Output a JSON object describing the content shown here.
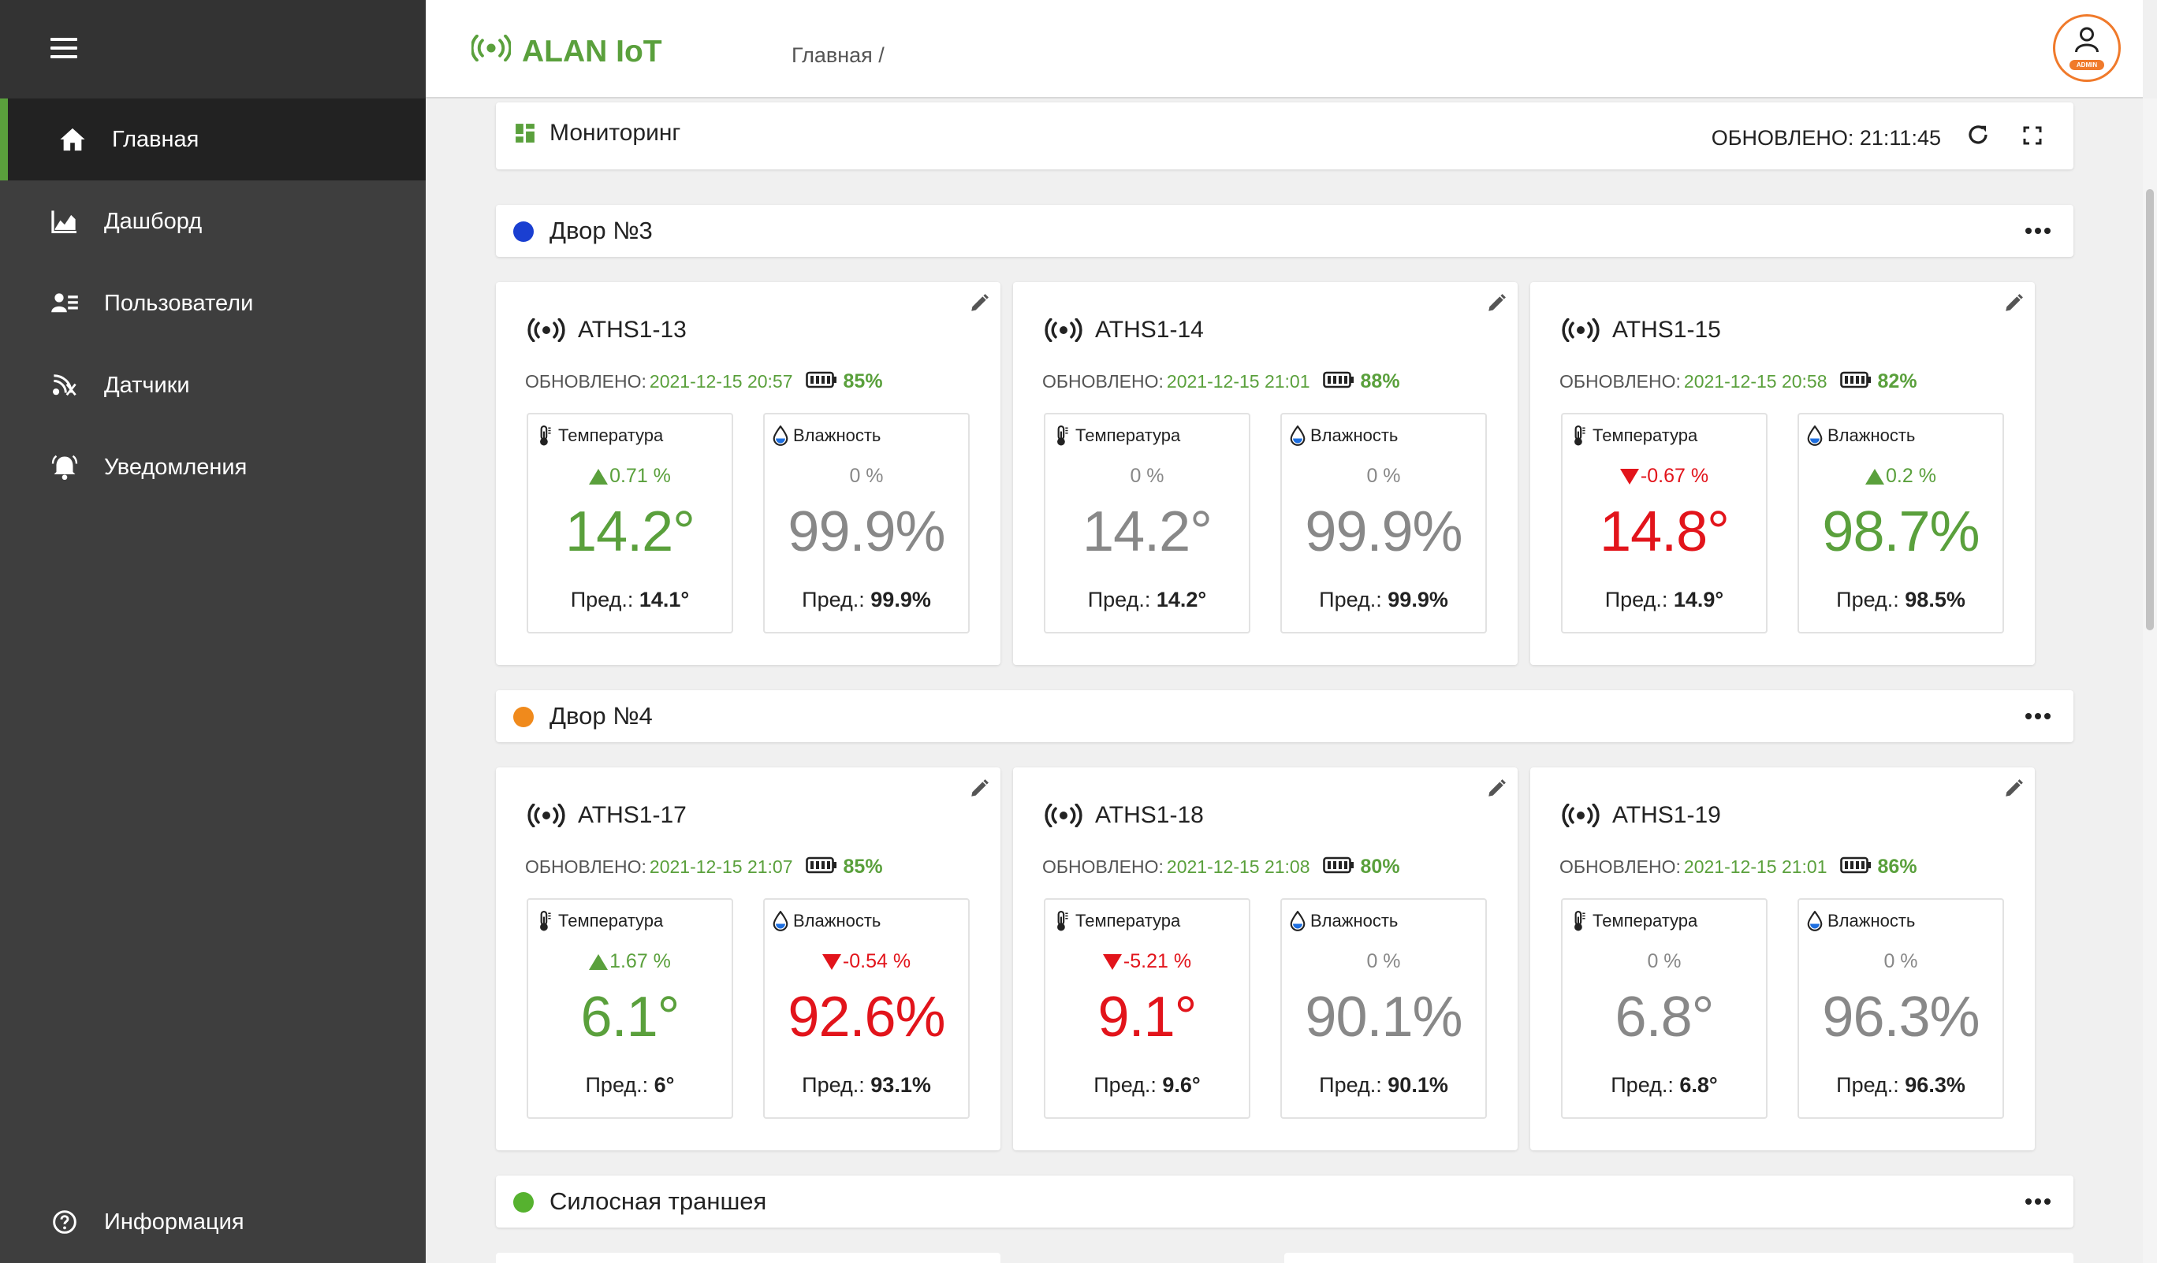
{
  "sidebar": {
    "items": [
      {
        "label": "Главная",
        "icon": "home-icon"
      },
      {
        "label": "Дашборд",
        "icon": "chart-icon"
      },
      {
        "label": "Пользователи",
        "icon": "users-icon"
      },
      {
        "label": "Датчики",
        "icon": "sensor-icon"
      },
      {
        "label": "Уведомления",
        "icon": "bell-icon"
      }
    ],
    "info_label": "Информация"
  },
  "header": {
    "brand": "ALAN IoT",
    "breadcrumb": "Главная /",
    "avatar_badge": "ADMIN"
  },
  "monitoring": {
    "title": "Мониторинг",
    "updated": "ОБНОВЛЕНО: 21:11:45"
  },
  "groups": [
    {
      "title": "Двор №3",
      "color": "#1a3fd1",
      "sensors": [
        {
          "name": "ATHS1-13",
          "status_label": "ОБНОВЛЕНО:",
          "status_time": "2021-12-15 20:57",
          "battery": "85%",
          "temp": {
            "label": "Температура",
            "delta": "0.71 %",
            "trend": "up",
            "value": "14.2°",
            "prev_label": "Пред.:",
            "prev": "14.1°"
          },
          "hum": {
            "label": "Влажность",
            "delta": "0 %",
            "trend": "none",
            "value": "99.9%",
            "prev_label": "Пред.:",
            "prev": "99.9%"
          }
        },
        {
          "name": "ATHS1-14",
          "status_label": "ОБНОВЛЕНО:",
          "status_time": "2021-12-15 21:01",
          "battery": "88%",
          "temp": {
            "label": "Температура",
            "delta": "0 %",
            "trend": "none",
            "value": "14.2°",
            "prev_label": "Пред.:",
            "prev": "14.2°"
          },
          "hum": {
            "label": "Влажность",
            "delta": "0 %",
            "trend": "none",
            "value": "99.9%",
            "prev_label": "Пред.:",
            "prev": "99.9%"
          }
        },
        {
          "name": "ATHS1-15",
          "status_label": "ОБНОВЛЕНО:",
          "status_time": "2021-12-15 20:58",
          "battery": "82%",
          "temp": {
            "label": "Температура",
            "delta": "-0.67 %",
            "trend": "down",
            "value": "14.8°",
            "prev_label": "Пред.:",
            "prev": "14.9°"
          },
          "hum": {
            "label": "Влажность",
            "delta": "0.2 %",
            "trend": "up",
            "value": "98.7%",
            "prev_label": "Пред.:",
            "prev": "98.5%"
          }
        }
      ]
    },
    {
      "title": "Двор №4",
      "color": "#f08a1c",
      "sensors": [
        {
          "name": "ATHS1-17",
          "status_label": "ОБНОВЛЕНО:",
          "status_time": "2021-12-15 21:07",
          "battery": "85%",
          "temp": {
            "label": "Температура",
            "delta": "1.67 %",
            "trend": "up",
            "value": "6.1°",
            "prev_label": "Пред.:",
            "prev": "6°"
          },
          "hum": {
            "label": "Влажность",
            "delta": "-0.54 %",
            "trend": "down",
            "value": "92.6%",
            "prev_label": "Пред.:",
            "prev": "93.1%"
          }
        },
        {
          "name": "ATHS1-18",
          "status_label": "ОБНОВЛЕНО:",
          "status_time": "2021-12-15 21:08",
          "battery": "80%",
          "temp": {
            "label": "Температура",
            "delta": "-5.21 %",
            "trend": "down",
            "value": "9.1°",
            "prev_label": "Пред.:",
            "prev": "9.6°"
          },
          "hum": {
            "label": "Влажность",
            "delta": "0 %",
            "trend": "none",
            "value": "90.1%",
            "prev_label": "Пред.:",
            "prev": "90.1%"
          }
        },
        {
          "name": "ATHS1-19",
          "status_label": "ОБНОВЛЕНО:",
          "status_time": "2021-12-15 21:01",
          "battery": "86%",
          "temp": {
            "label": "Температура",
            "delta": "0 %",
            "trend": "none",
            "value": "6.8°",
            "prev_label": "Пред.:",
            "prev": "6.8°"
          },
          "hum": {
            "label": "Влажность",
            "delta": "0 %",
            "trend": "none",
            "value": "96.3%",
            "prev_label": "Пред.:",
            "prev": "96.3%"
          }
        }
      ]
    },
    {
      "title": "Силосная траншея",
      "color": "#56b22f",
      "sensors": []
    }
  ]
}
